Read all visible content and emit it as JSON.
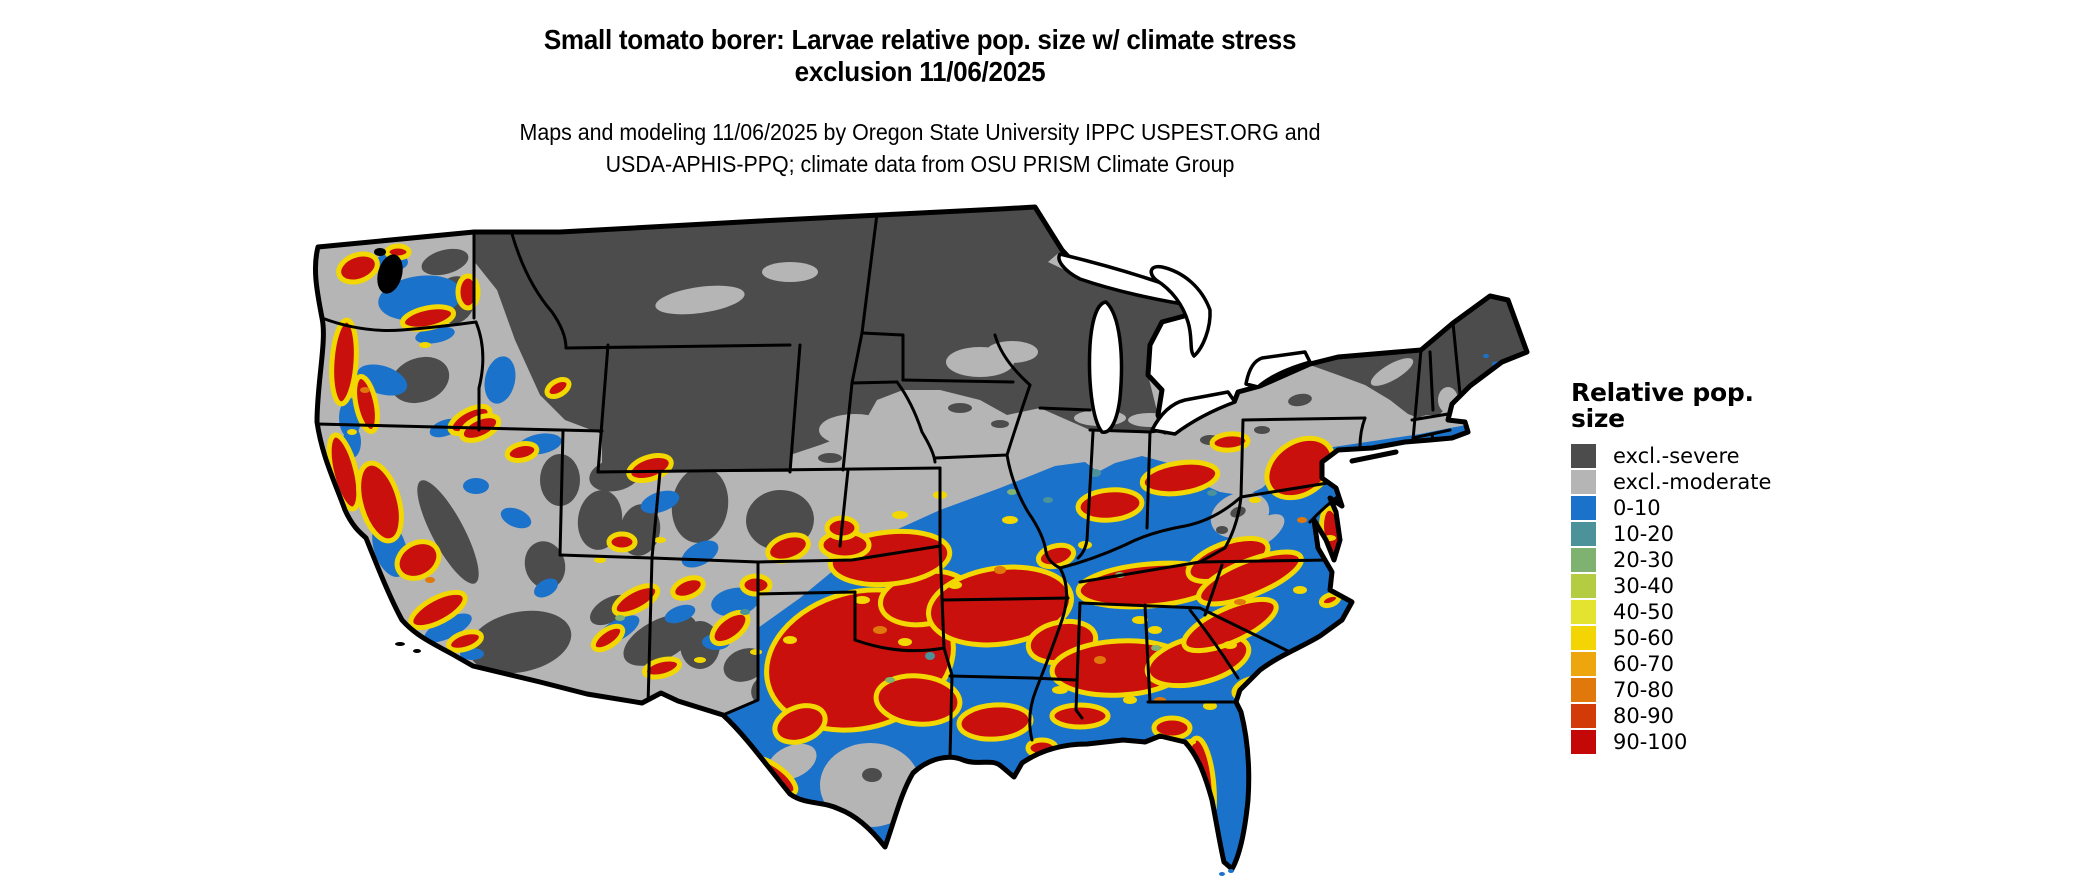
{
  "figure": {
    "title_line1": "Small tomato borer: Larvae relative pop. size w/ climate stress",
    "title_line2": "exclusion 11/06/2025",
    "subtitle_line1": "Maps and modeling 11/06/2025 by Oregon State University IPPC USPEST.ORG and",
    "subtitle_line2": "USDA-APHIS-PPQ; climate data from OSU PRISM Climate Group"
  },
  "legend": {
    "title": "Relative pop. size",
    "items": [
      {
        "label": "excl.-severe",
        "color": "#4c4c4c"
      },
      {
        "label": "excl.-moderate",
        "color": "#b5b5b5"
      },
      {
        "label": "0-10",
        "color": "#1b72cb"
      },
      {
        "label": "10-20",
        "color": "#4b929b"
      },
      {
        "label": "20-30",
        "color": "#7fb170"
      },
      {
        "label": "30-40",
        "color": "#b4cc42"
      },
      {
        "label": "40-50",
        "color": "#e4e32f"
      },
      {
        "label": "50-60",
        "color": "#f3d504"
      },
      {
        "label": "60-70",
        "color": "#eda60e"
      },
      {
        "label": "70-80",
        "color": "#e1780c"
      },
      {
        "label": "80-90",
        "color": "#d23b08"
      },
      {
        "label": "90-100",
        "color": "#c40808"
      }
    ]
  },
  "map": {
    "region": "Continental United States",
    "water_color": "#ffffff",
    "border_color": "#000000",
    "dominant_classes": {
      "north": "excl.-severe",
      "central_band": "excl.-moderate",
      "south_and_east": "0-10 with 90-100 patches fringed by 40-60 yellows"
    }
  }
}
